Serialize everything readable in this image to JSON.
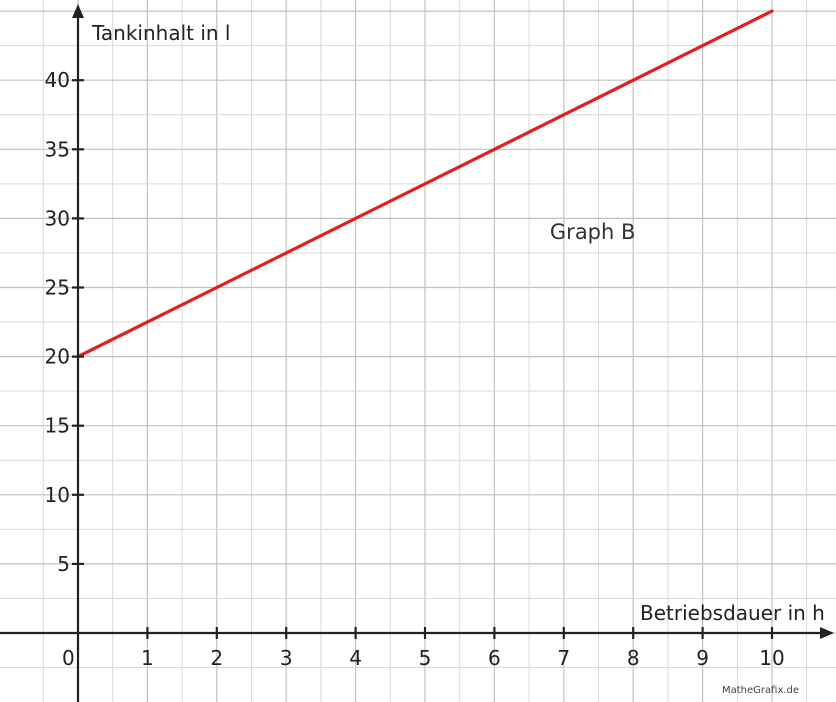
{
  "chart_data": {
    "type": "line",
    "title": "",
    "xlabel": "Betriebsdauer in h",
    "ylabel": "Tankinhalt in l",
    "xlim": [
      0,
      10.75
    ],
    "ylim": [
      0,
      44.5
    ],
    "x_ticks": [
      1,
      2,
      3,
      4,
      5,
      6,
      7,
      8,
      9,
      10
    ],
    "y_ticks": [
      5,
      10,
      15,
      20,
      25,
      30,
      35,
      40
    ],
    "origin_label": "0",
    "grid": true,
    "series": [
      {
        "color": "#e02020",
        "x": [
          0,
          10
        ],
        "y": [
          20,
          45
        ]
      }
    ],
    "annotations": [
      {
        "text": "Graph B",
        "x": 6.8,
        "y": 28.5
      }
    ],
    "credit": "MatheGrafix.de"
  }
}
